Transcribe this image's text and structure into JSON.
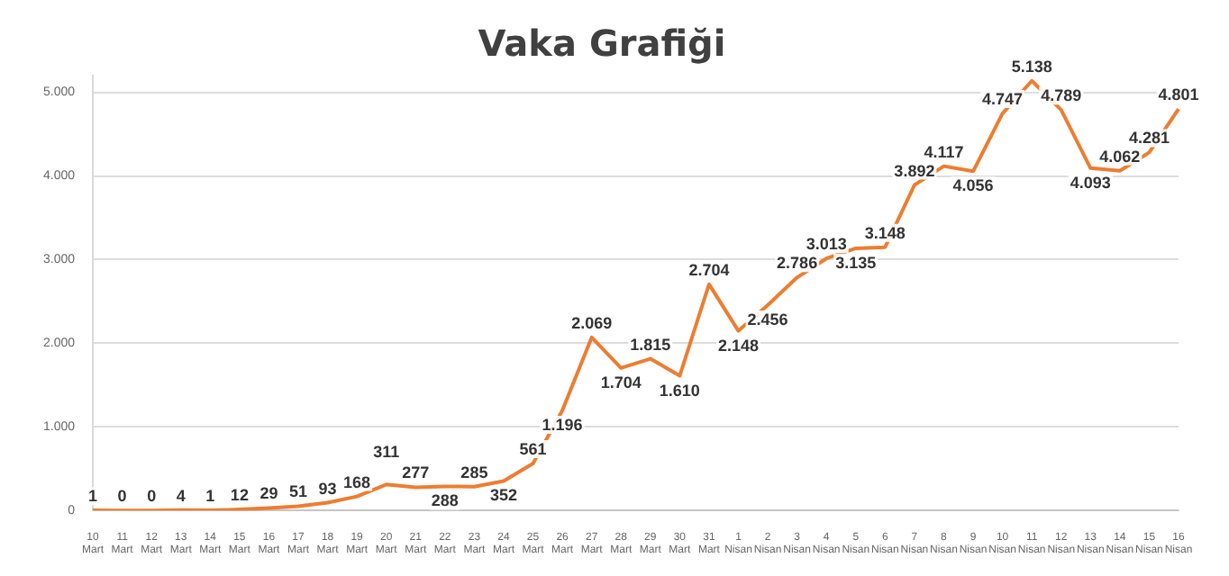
{
  "chart_data": {
    "type": "line",
    "title": "Vaka Grafiği",
    "categories": [
      "10 Mart",
      "11 Mart",
      "12 Mart",
      "13 Mart",
      "14 Mart",
      "15 Mart",
      "16 Mart",
      "17 Mart",
      "18 Mart",
      "19 Mart",
      "20 Mart",
      "21 Mart",
      "22 Mart",
      "23 Mart",
      "24 Mart",
      "25 Mart",
      "26 Mart",
      "27 Mart",
      "28 Mart",
      "29 Mart",
      "30 Mart",
      "31 Mart",
      "1 Nisan",
      "2 Nisan",
      "3 Nisan",
      "4 Nisan",
      "5 Nisan",
      "6 Nisan",
      "7 Nisan",
      "8 Nisan",
      "9 Nisan",
      "10 Nisan",
      "11 Nisan",
      "12 Nisan",
      "13 Nisan",
      "14 Nisan",
      "15 Nisan",
      "16 Nisan"
    ],
    "series": [
      {
        "color": "#ed7d31",
        "values": [
          1,
          0,
          0,
          4,
          1,
          12,
          29,
          51,
          93,
          168,
          311,
          277,
          288,
          285,
          352,
          561,
          1196,
          2069,
          1704,
          1815,
          1610,
          2704,
          2148,
          2456,
          2786,
          3013,
          3135,
          3148,
          3892,
          4117,
          4056,
          4747,
          5138,
          4789,
          4093,
          4062,
          4281,
          4801
        ],
        "value_labels": [
          "1",
          "0",
          "0",
          "4",
          "1",
          "12",
          "29",
          "51",
          "93",
          "168",
          "311",
          "277",
          "288",
          "285",
          "352",
          "561",
          "1.196",
          "2.069",
          "1.704",
          "1.815",
          "1.610",
          "2.704",
          "2.148",
          "2.456",
          "2.786",
          "3.013",
          "3.135",
          "3.148",
          "3.892",
          "4.117",
          "4.056",
          "4.747",
          "5.138",
          "4.789",
          "4.093",
          "4.062",
          "4.281",
          "4.801"
        ]
      }
    ],
    "ylim": [
      0,
      5200
    ],
    "yticks": [
      {
        "value": 0,
        "label": "0"
      },
      {
        "value": 1000,
        "label": "1.000"
      },
      {
        "value": 2000,
        "label": "2.000"
      },
      {
        "value": 3000,
        "label": "3.000"
      },
      {
        "value": 4000,
        "label": "4.000"
      },
      {
        "value": 5000,
        "label": "5.000"
      }
    ],
    "grid": "y",
    "legend": false,
    "marker": "none",
    "line_style": "solid"
  }
}
